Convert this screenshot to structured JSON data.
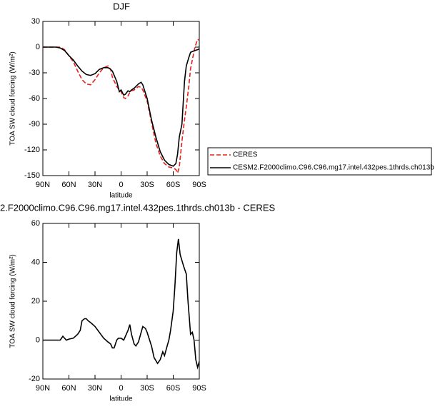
{
  "chart_data": [
    {
      "type": "line",
      "title": "DJF",
      "xlabel": "latitude",
      "ylabel": "TOA SW cloud forcing (W/m²)",
      "x": [
        90,
        80,
        75,
        70,
        65,
        60,
        55,
        50,
        45,
        40,
        35,
        30,
        25,
        20,
        15,
        12,
        10,
        5,
        2,
        0,
        -3,
        -5,
        -8,
        -10,
        -12,
        -15,
        -20,
        -23,
        -25,
        -30,
        -35,
        -40,
        -45,
        -50,
        -55,
        -60,
        -63,
        -65,
        -67,
        -70,
        -73,
        -75,
        -78,
        -80,
        -85,
        -88,
        -90
      ],
      "series": [
        {
          "name": "CERES",
          "color": "#e8201c",
          "dashed": true,
          "values": [
            0,
            0,
            0,
            0,
            -3,
            -10,
            -17,
            -28,
            -38,
            -43,
            -44,
            -38,
            -30,
            -24,
            -22,
            -26,
            -35,
            -46,
            -50,
            -52,
            -59,
            -60,
            -57,
            -53,
            -51,
            -50,
            -46,
            -47,
            -50,
            -63,
            -88,
            -112,
            -127,
            -136,
            -140,
            -141,
            -143,
            -147,
            -140,
            -110,
            -85,
            -70,
            -45,
            -25,
            0,
            9,
            8
          ]
        },
        {
          "name": "CESM2.F2000climo.C96.C96.mg17.intel.432pes.1thrds.ch013b",
          "color": "#000000",
          "dashed": false,
          "values": [
            0,
            0,
            0,
            -1,
            -4,
            -10,
            -15,
            -22,
            -28,
            -32,
            -33,
            -31,
            -26,
            -24,
            -24,
            -26,
            -28,
            -40,
            -52,
            -50,
            -56,
            -55,
            -51,
            -52,
            -50,
            -48,
            -43,
            -41,
            -44,
            -60,
            -85,
            -105,
            -122,
            -132,
            -137,
            -139,
            -136,
            -125,
            -105,
            -90,
            -40,
            -22,
            -12,
            -6,
            -4,
            -3,
            -2
          ]
        }
      ],
      "xlim": [
        90,
        -90
      ],
      "xticks": [
        {
          "value": 90,
          "label": "90N"
        },
        {
          "value": 60,
          "label": "60N"
        },
        {
          "value": 30,
          "label": "30N"
        },
        0,
        {
          "value": -30,
          "label": "30S"
        },
        {
          "value": -60,
          "label": "60S"
        },
        {
          "value": -90,
          "label": "90S"
        }
      ],
      "ylim": [
        -150,
        30
      ],
      "yticks": [
        -150,
        -120,
        -90,
        -60,
        -30,
        0,
        30
      ],
      "legend": "right"
    },
    {
      "type": "line",
      "title": "2.F2000climo.C96.C96.mg17.intel.432pes.1thrds.ch013b - CERES",
      "xlabel": "latitude",
      "ylabel": "TOA SW cloud forcing (W/m²)",
      "x": [
        90,
        80,
        70,
        67,
        63,
        60,
        55,
        50,
        47,
        45,
        42,
        40,
        38,
        35,
        30,
        25,
        20,
        15,
        12,
        10,
        8,
        5,
        3,
        0,
        -3,
        -5,
        -8,
        -10,
        -12,
        -15,
        -17,
        -20,
        -25,
        -28,
        -30,
        -35,
        -38,
        -42,
        -45,
        -48,
        -50,
        -53,
        -55,
        -57,
        -60,
        -62,
        -64,
        -66,
        -68,
        -72,
        -75,
        -77,
        -80,
        -82,
        -84,
        -86,
        -88,
        -90
      ],
      "values": [
        0,
        0,
        0,
        2,
        0,
        0.5,
        1,
        3,
        5,
        10,
        11,
        11,
        10,
        9,
        7,
        4,
        1,
        -1,
        -2,
        -4,
        -4,
        0,
        1,
        1,
        0,
        2,
        5,
        8,
        3,
        -2,
        -3,
        -1,
        7,
        6,
        4,
        -3,
        -9,
        -12,
        -10,
        -6,
        -8,
        -3,
        0,
        5,
        15,
        28,
        45,
        52,
        44,
        38,
        34,
        20,
        3,
        4,
        0,
        -10,
        -14,
        -11
      ],
      "color": "#000000",
      "xlim": [
        90,
        -90
      ],
      "xticks": [
        {
          "value": 90,
          "label": "90N"
        },
        {
          "value": 60,
          "label": "60N"
        },
        {
          "value": 30,
          "label": "30N"
        },
        0,
        {
          "value": -30,
          "label": "30S"
        },
        {
          "value": -60,
          "label": "60S"
        },
        {
          "value": -90,
          "label": "90S"
        }
      ],
      "ylim": [
        -20,
        60
      ],
      "yticks": [
        -20,
        0,
        20,
        40,
        60
      ]
    }
  ]
}
